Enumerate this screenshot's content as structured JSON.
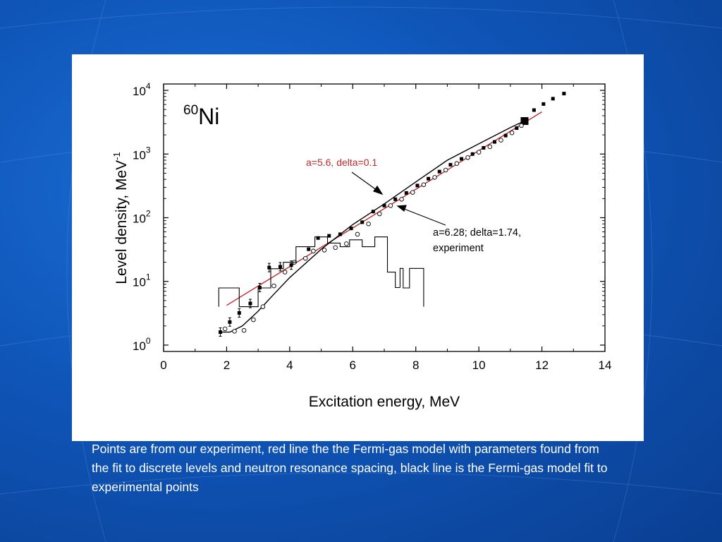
{
  "slide": {
    "caption": "Points are from our experiment, red line the the Fermi-gas model with parameters found from the fit to discrete levels and neutron resonance spacing, black line is the Fermi-gas model fit to experimental points",
    "background_color": "#0f55b8"
  },
  "chart_data": {
    "type": "scatter",
    "title_mass": "60",
    "title_element": "Ni",
    "xlabel": "Excitation energy, MeV",
    "ylabel_main": "Level density, MeV",
    "ylabel_sup": "-1",
    "xlim": [
      0,
      14
    ],
    "ylim_log10": [
      -0.1,
      4.1
    ],
    "yscale": "log",
    "grid": false,
    "x_ticks": [
      "0",
      "2",
      "4",
      "6",
      "8",
      "10",
      "12",
      "14"
    ],
    "x_tick_values": [
      0,
      2,
      4,
      6,
      8,
      10,
      12,
      14
    ],
    "y_ticks": [
      {
        "base": "10",
        "exp": "0"
      },
      {
        "base": "10",
        "exp": "1"
      },
      {
        "base": "10",
        "exp": "2"
      },
      {
        "base": "10",
        "exp": "3"
      },
      {
        "base": "10",
        "exp": "4"
      }
    ],
    "y_tick_log10": [
      0,
      1,
      2,
      3,
      4
    ],
    "annotations": {
      "red": "a=5.6, delta=0.1",
      "black_line1": "a=6.28; delta=1.74,",
      "black_line2": "experiment"
    },
    "colors": {
      "red_line": "#c0282d",
      "black": "#000000"
    },
    "series": [
      {
        "kind": "line",
        "color": "#c0282d",
        "x": [
          2.0,
          12.0
        ],
        "y": [
          4.2,
          4600
        ]
      },
      {
        "kind": "line",
        "color": "#000000",
        "x": [
          1.8,
          2.1,
          2.5,
          3.0,
          3.5,
          4.0,
          5.0,
          6.0,
          7.0,
          8.0,
          9.0,
          10.0,
          11.0,
          11.5
        ],
        "y": [
          1.6,
          1.6,
          2.0,
          3.4,
          6.3,
          11.5,
          32,
          78,
          165,
          365,
          800,
          1450,
          2600,
          3400
        ]
      },
      {
        "kind": "points-filled",
        "x": [
          1.8,
          2.1,
          2.4,
          2.75,
          3.05,
          3.35,
          3.7,
          4.05,
          4.6,
          4.9,
          5.25,
          5.6,
          5.95,
          6.3,
          6.65,
          7.0,
          7.35,
          7.7,
          8.05,
          8.4,
          8.75,
          9.1,
          9.45,
          9.8,
          10.15,
          10.5,
          10.85,
          11.2,
          11.45,
          11.75,
          12.05,
          12.35,
          12.7
        ],
        "y": [
          1.6,
          2.3,
          3.2,
          4.5,
          8.0,
          16.5,
          17,
          18,
          32,
          48,
          52,
          55,
          68,
          85,
          125,
          155,
          195,
          245,
          320,
          410,
          530,
          680,
          840,
          1000,
          1250,
          1550,
          1950,
          2550,
          3300,
          4900,
          6100,
          7400,
          8900
        ]
      },
      {
        "kind": "points-open",
        "x": [
          1.95,
          2.25,
          2.55,
          2.85,
          3.15,
          3.5,
          3.85,
          4.15,
          4.5,
          4.75,
          5.1,
          5.45,
          5.8,
          6.15,
          6.5,
          6.85,
          7.2,
          7.55,
          7.9,
          8.25,
          8.6,
          8.95,
          9.3,
          9.65,
          10.0,
          10.35,
          10.7,
          11.05,
          11.35
        ],
        "y": [
          1.8,
          1.65,
          1.7,
          2.5,
          4.0,
          8.5,
          14,
          20,
          23,
          30,
          31,
          34,
          39,
          55,
          80,
          115,
          155,
          195,
          250,
          330,
          430,
          560,
          710,
          880,
          1070,
          1300,
          1650,
          2150,
          2800
        ]
      },
      {
        "kind": "histogram",
        "x": [
          1.75,
          1.75,
          2.4,
          2.4,
          3.0,
          3.0,
          3.4,
          3.4,
          3.8,
          3.8,
          4.2,
          4.2,
          4.8,
          4.8,
          5.2,
          5.2,
          5.6,
          5.6,
          5.9,
          5.9,
          6.3,
          6.3,
          6.7,
          6.7,
          7.1,
          7.1,
          7.35,
          7.35,
          7.5
        ],
        "y": [
          4.0,
          7.9,
          7.9,
          4.0,
          4.0,
          7.9,
          7.9,
          15.8,
          15.8,
          20,
          20,
          35,
          35,
          50,
          50,
          40,
          40,
          35,
          35,
          45,
          45,
          35,
          35,
          50,
          50,
          14,
          14,
          8,
          8
        ]
      },
      {
        "kind": "histogram",
        "x": [
          7.5,
          7.5,
          7.6,
          7.6,
          7.8,
          7.8,
          8.25,
          8.25
        ],
        "y": [
          8,
          16,
          16,
          7.9,
          7.9,
          16,
          16,
          7.9
        ]
      },
      {
        "kind": "histogram",
        "x": [
          8.25,
          8.25
        ],
        "y": [
          7.9,
          4.0
        ]
      }
    ]
  }
}
